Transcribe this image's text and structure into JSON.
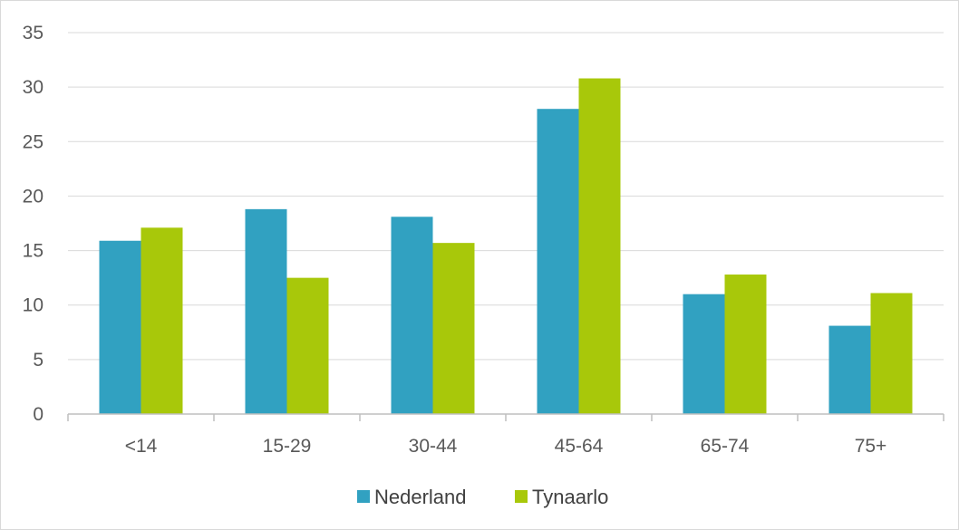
{
  "chart_data": {
    "type": "bar",
    "title": "",
    "xlabel": "",
    "ylabel": "",
    "categories": [
      "<14",
      "15-29",
      "30-44",
      "45-64",
      "65-74",
      "75+"
    ],
    "series": [
      {
        "name": "Nederland",
        "color": "#31a1c1",
        "values": [
          15.9,
          18.8,
          18.1,
          28.0,
          11.0,
          8.1
        ]
      },
      {
        "name": "Tynaarlo",
        "color": "#a8c80a",
        "values": [
          17.1,
          12.5,
          15.7,
          30.8,
          12.8,
          11.1
        ]
      }
    ],
    "ylim": [
      0,
      35
    ],
    "yticks": [
      "0",
      "5",
      "10",
      "15",
      "20",
      "25",
      "30",
      "35"
    ],
    "grid": true,
    "legend_position": "bottom"
  }
}
